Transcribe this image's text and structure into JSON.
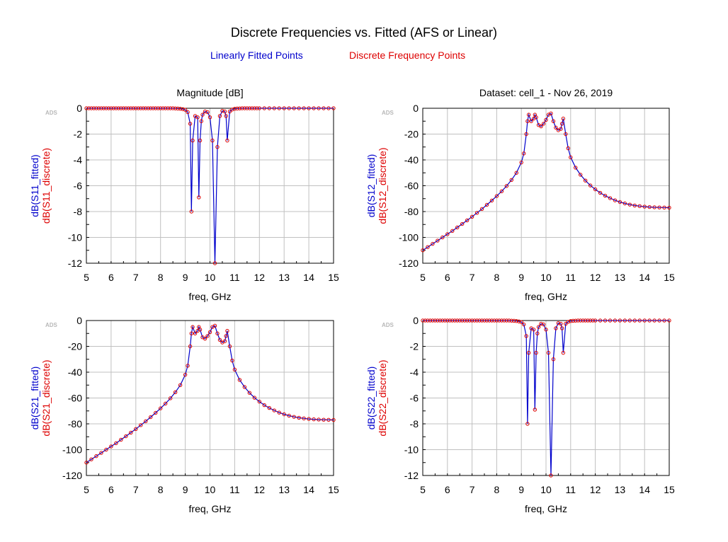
{
  "title": "Discrete Frequencies vs. Fitted (AFS or Linear)",
  "legend": {
    "fitted": "Linearly Fitted Points",
    "discrete": "Discrete Frequency Points"
  },
  "colors": {
    "fitted": "#0000cc",
    "discrete": "#dd0000",
    "grid": "#c0c0c0",
    "axis": "#000000"
  },
  "ads_watermark": "ADS",
  "chart_data": [
    {
      "id": "s11",
      "type": "line",
      "header": "Magnitude [dB]",
      "xlabel": "freq, GHz",
      "ylabel_fitted": "dB(S11_fitted)",
      "ylabel_discrete": "dB(S11_discrete)",
      "xlim": [
        5,
        15
      ],
      "ylim": [
        -12,
        0
      ],
      "xticks": [
        5,
        6,
        7,
        8,
        9,
        10,
        11,
        12,
        13,
        14,
        15
      ],
      "yticks": [
        0,
        -2,
        -4,
        -6,
        -8,
        -10,
        -12
      ],
      "grid": true,
      "points": [
        [
          5,
          0
        ],
        [
          5.1,
          0
        ],
        [
          5.2,
          0
        ],
        [
          5.3,
          0
        ],
        [
          5.4,
          0
        ],
        [
          5.5,
          0
        ],
        [
          5.6,
          0
        ],
        [
          5.7,
          0
        ],
        [
          5.8,
          0
        ],
        [
          5.9,
          0
        ],
        [
          6,
          0
        ],
        [
          6.1,
          0
        ],
        [
          6.2,
          0
        ],
        [
          6.3,
          0
        ],
        [
          6.4,
          0
        ],
        [
          6.5,
          0
        ],
        [
          6.6,
          0
        ],
        [
          6.7,
          0
        ],
        [
          6.8,
          0
        ],
        [
          6.9,
          0
        ],
        [
          7,
          0
        ],
        [
          7.1,
          0
        ],
        [
          7.2,
          0
        ],
        [
          7.3,
          0
        ],
        [
          7.4,
          0
        ],
        [
          7.5,
          0
        ],
        [
          7.6,
          0
        ],
        [
          7.7,
          0
        ],
        [
          7.8,
          0
        ],
        [
          7.9,
          0
        ],
        [
          8,
          0
        ],
        [
          8.1,
          0
        ],
        [
          8.2,
          0
        ],
        [
          8.3,
          0
        ],
        [
          8.4,
          0
        ],
        [
          8.5,
          0
        ],
        [
          8.6,
          -0.01
        ],
        [
          8.7,
          -0.02
        ],
        [
          8.8,
          -0.04
        ],
        [
          8.9,
          -0.07
        ],
        [
          9,
          -0.12
        ],
        [
          9.1,
          -0.3
        ],
        [
          9.2,
          -1.2
        ],
        [
          9.25,
          -8.0
        ],
        [
          9.3,
          -2.5
        ],
        [
          9.4,
          -0.6
        ],
        [
          9.5,
          -0.7
        ],
        [
          9.55,
          -6.9
        ],
        [
          9.6,
          -2.5
        ],
        [
          9.65,
          -1.0
        ],
        [
          9.7,
          -0.5
        ],
        [
          9.8,
          -0.25
        ],
        [
          9.9,
          -0.3
        ],
        [
          10,
          -0.7
        ],
        [
          10.1,
          -2.5
        ],
        [
          10.2,
          -12.0
        ],
        [
          10.3,
          -3.0
        ],
        [
          10.4,
          -0.6
        ],
        [
          10.5,
          -0.2
        ],
        [
          10.6,
          -0.25
        ],
        [
          10.65,
          -0.6
        ],
        [
          10.7,
          -2.5
        ],
        [
          10.8,
          -0.25
        ],
        [
          10.9,
          -0.1
        ],
        [
          11,
          -0.04
        ],
        [
          11.1,
          -0.02
        ],
        [
          11.2,
          -0.01
        ],
        [
          11.3,
          0
        ],
        [
          11.4,
          0
        ],
        [
          11.5,
          0
        ],
        [
          11.6,
          0
        ],
        [
          11.7,
          0
        ],
        [
          11.8,
          0
        ],
        [
          11.9,
          0
        ],
        [
          12,
          0
        ],
        [
          12.2,
          0
        ],
        [
          12.4,
          0
        ],
        [
          12.6,
          0
        ],
        [
          12.8,
          0
        ],
        [
          13,
          0
        ],
        [
          13.2,
          0
        ],
        [
          13.4,
          0
        ],
        [
          13.6,
          0
        ],
        [
          13.8,
          0
        ],
        [
          14,
          0
        ],
        [
          14.2,
          0
        ],
        [
          14.4,
          0
        ],
        [
          14.6,
          0
        ],
        [
          14.8,
          0
        ],
        [
          15,
          0
        ]
      ]
    },
    {
      "id": "s12",
      "type": "line",
      "header": "Dataset: cell_1 - Nov 26, 2019",
      "xlabel": "freq, GHz",
      "ylabel_fitted": "dB(S12_fitted)",
      "ylabel_discrete": "dB(S12_discrete)",
      "xlim": [
        5,
        15
      ],
      "ylim": [
        -120,
        0
      ],
      "xticks": [
        5,
        6,
        7,
        8,
        9,
        10,
        11,
        12,
        13,
        14,
        15
      ],
      "yticks": [
        0,
        -20,
        -40,
        -60,
        -80,
        -100,
        -120
      ],
      "grid": true,
      "points": [
        [
          5,
          -110
        ],
        [
          5.2,
          -107.5
        ],
        [
          5.4,
          -105
        ],
        [
          5.6,
          -102.5
        ],
        [
          5.8,
          -100
        ],
        [
          6,
          -97.5
        ],
        [
          6.2,
          -95
        ],
        [
          6.4,
          -92.3
        ],
        [
          6.6,
          -89.6
        ],
        [
          6.8,
          -86.8
        ],
        [
          7,
          -84
        ],
        [
          7.2,
          -81
        ],
        [
          7.4,
          -78
        ],
        [
          7.6,
          -74.8
        ],
        [
          7.8,
          -71.5
        ],
        [
          8,
          -68
        ],
        [
          8.2,
          -64.3
        ],
        [
          8.4,
          -60.2
        ],
        [
          8.6,
          -55.5
        ],
        [
          8.8,
          -50
        ],
        [
          9,
          -42
        ],
        [
          9.1,
          -35
        ],
        [
          9.2,
          -20
        ],
        [
          9.25,
          -10
        ],
        [
          9.3,
          -5
        ],
        [
          9.4,
          -10
        ],
        [
          9.5,
          -8
        ],
        [
          9.55,
          -5
        ],
        [
          9.6,
          -7
        ],
        [
          9.7,
          -13
        ],
        [
          9.8,
          -14
        ],
        [
          9.9,
          -12
        ],
        [
          10,
          -9
        ],
        [
          10.1,
          -5
        ],
        [
          10.2,
          -4
        ],
        [
          10.3,
          -10
        ],
        [
          10.4,
          -15
        ],
        [
          10.5,
          -17
        ],
        [
          10.6,
          -16
        ],
        [
          10.65,
          -12
        ],
        [
          10.7,
          -8
        ],
        [
          10.8,
          -20
        ],
        [
          10.9,
          -31
        ],
        [
          11,
          -38
        ],
        [
          11.2,
          -46
        ],
        [
          11.4,
          -51.5
        ],
        [
          11.6,
          -56
        ],
        [
          11.8,
          -59.8
        ],
        [
          12,
          -62.8
        ],
        [
          12.2,
          -65.5
        ],
        [
          12.4,
          -67.7
        ],
        [
          12.6,
          -69.6
        ],
        [
          12.8,
          -71.3
        ],
        [
          13,
          -72.6
        ],
        [
          13.2,
          -73.7
        ],
        [
          13.4,
          -74.6
        ],
        [
          13.6,
          -75.3
        ],
        [
          13.8,
          -75.8
        ],
        [
          14,
          -76.2
        ],
        [
          14.2,
          -76.5
        ],
        [
          14.4,
          -76.7
        ],
        [
          14.6,
          -76.8
        ],
        [
          14.8,
          -76.9
        ],
        [
          15,
          -77
        ]
      ]
    },
    {
      "id": "s21",
      "type": "line",
      "header": "",
      "xlabel": "freq, GHz",
      "ylabel_fitted": "dB(S21_fitted)",
      "ylabel_discrete": "dB(S21_discrete)",
      "xlim": [
        5,
        15
      ],
      "ylim": [
        -120,
        0
      ],
      "xticks": [
        5,
        6,
        7,
        8,
        9,
        10,
        11,
        12,
        13,
        14,
        15
      ],
      "yticks": [
        0,
        -20,
        -40,
        -60,
        -80,
        -100,
        -120
      ],
      "grid": true,
      "points": [
        [
          5,
          -110
        ],
        [
          5.2,
          -107.5
        ],
        [
          5.4,
          -105
        ],
        [
          5.6,
          -102.5
        ],
        [
          5.8,
          -100
        ],
        [
          6,
          -97.5
        ],
        [
          6.2,
          -95
        ],
        [
          6.4,
          -92.3
        ],
        [
          6.6,
          -89.6
        ],
        [
          6.8,
          -86.8
        ],
        [
          7,
          -84
        ],
        [
          7.2,
          -81
        ],
        [
          7.4,
          -78
        ],
        [
          7.6,
          -74.8
        ],
        [
          7.8,
          -71.5
        ],
        [
          8,
          -68
        ],
        [
          8.2,
          -64.3
        ],
        [
          8.4,
          -60.2
        ],
        [
          8.6,
          -55.5
        ],
        [
          8.8,
          -50
        ],
        [
          9,
          -42
        ],
        [
          9.1,
          -35
        ],
        [
          9.2,
          -20
        ],
        [
          9.25,
          -10
        ],
        [
          9.3,
          -5
        ],
        [
          9.4,
          -10
        ],
        [
          9.5,
          -8
        ],
        [
          9.55,
          -5
        ],
        [
          9.6,
          -7
        ],
        [
          9.7,
          -13
        ],
        [
          9.8,
          -14
        ],
        [
          9.9,
          -12
        ],
        [
          10,
          -9
        ],
        [
          10.1,
          -5
        ],
        [
          10.2,
          -4
        ],
        [
          10.3,
          -10
        ],
        [
          10.4,
          -15
        ],
        [
          10.5,
          -17
        ],
        [
          10.6,
          -16
        ],
        [
          10.65,
          -12
        ],
        [
          10.7,
          -8
        ],
        [
          10.8,
          -20
        ],
        [
          10.9,
          -31
        ],
        [
          11,
          -38
        ],
        [
          11.2,
          -46
        ],
        [
          11.4,
          -51.5
        ],
        [
          11.6,
          -56
        ],
        [
          11.8,
          -59.8
        ],
        [
          12,
          -62.8
        ],
        [
          12.2,
          -65.5
        ],
        [
          12.4,
          -67.7
        ],
        [
          12.6,
          -69.6
        ],
        [
          12.8,
          -71.3
        ],
        [
          13,
          -72.6
        ],
        [
          13.2,
          -73.7
        ],
        [
          13.4,
          -74.6
        ],
        [
          13.6,
          -75.3
        ],
        [
          13.8,
          -75.8
        ],
        [
          14,
          -76.2
        ],
        [
          14.2,
          -76.5
        ],
        [
          14.4,
          -76.7
        ],
        [
          14.6,
          -76.8
        ],
        [
          14.8,
          -76.9
        ],
        [
          15,
          -77
        ]
      ]
    },
    {
      "id": "s22",
      "type": "line",
      "header": "",
      "xlabel": "freq, GHz",
      "ylabel_fitted": "dB(S22_fitted)",
      "ylabel_discrete": "dB(S22_discrete)",
      "xlim": [
        5,
        15
      ],
      "ylim": [
        -12,
        0
      ],
      "xticks": [
        5,
        6,
        7,
        8,
        9,
        10,
        11,
        12,
        13,
        14,
        15
      ],
      "yticks": [
        0,
        -2,
        -4,
        -6,
        -8,
        -10,
        -12
      ],
      "grid": true,
      "points": [
        [
          5,
          0
        ],
        [
          5.1,
          0
        ],
        [
          5.2,
          0
        ],
        [
          5.3,
          0
        ],
        [
          5.4,
          0
        ],
        [
          5.5,
          0
        ],
        [
          5.6,
          0
        ],
        [
          5.7,
          0
        ],
        [
          5.8,
          0
        ],
        [
          5.9,
          0
        ],
        [
          6,
          0
        ],
        [
          6.1,
          0
        ],
        [
          6.2,
          0
        ],
        [
          6.3,
          0
        ],
        [
          6.4,
          0
        ],
        [
          6.5,
          0
        ],
        [
          6.6,
          0
        ],
        [
          6.7,
          0
        ],
        [
          6.8,
          0
        ],
        [
          6.9,
          0
        ],
        [
          7,
          0
        ],
        [
          7.1,
          0
        ],
        [
          7.2,
          0
        ],
        [
          7.3,
          0
        ],
        [
          7.4,
          0
        ],
        [
          7.5,
          0
        ],
        [
          7.6,
          0
        ],
        [
          7.7,
          0
        ],
        [
          7.8,
          0
        ],
        [
          7.9,
          0
        ],
        [
          8,
          0
        ],
        [
          8.1,
          0
        ],
        [
          8.2,
          0
        ],
        [
          8.3,
          0
        ],
        [
          8.4,
          0
        ],
        [
          8.5,
          0
        ],
        [
          8.6,
          -0.01
        ],
        [
          8.7,
          -0.02
        ],
        [
          8.8,
          -0.04
        ],
        [
          8.9,
          -0.07
        ],
        [
          9,
          -0.12
        ],
        [
          9.1,
          -0.3
        ],
        [
          9.2,
          -1.2
        ],
        [
          9.25,
          -8.0
        ],
        [
          9.3,
          -2.5
        ],
        [
          9.4,
          -0.6
        ],
        [
          9.5,
          -0.7
        ],
        [
          9.55,
          -6.9
        ],
        [
          9.6,
          -2.5
        ],
        [
          9.65,
          -1.0
        ],
        [
          9.7,
          -0.5
        ],
        [
          9.8,
          -0.25
        ],
        [
          9.9,
          -0.3
        ],
        [
          10,
          -0.7
        ],
        [
          10.1,
          -2.5
        ],
        [
          10.2,
          -12.0
        ],
        [
          10.3,
          -3.0
        ],
        [
          10.4,
          -0.6
        ],
        [
          10.5,
          -0.2
        ],
        [
          10.6,
          -0.25
        ],
        [
          10.65,
          -0.6
        ],
        [
          10.7,
          -2.5
        ],
        [
          10.8,
          -0.25
        ],
        [
          10.9,
          -0.1
        ],
        [
          11,
          -0.04
        ],
        [
          11.1,
          -0.02
        ],
        [
          11.2,
          -0.01
        ],
        [
          11.3,
          0
        ],
        [
          11.4,
          0
        ],
        [
          11.5,
          0
        ],
        [
          11.6,
          0
        ],
        [
          11.7,
          0
        ],
        [
          11.8,
          0
        ],
        [
          11.9,
          0
        ],
        [
          12,
          0
        ],
        [
          12.2,
          0
        ],
        [
          12.4,
          0
        ],
        [
          12.6,
          0
        ],
        [
          12.8,
          0
        ],
        [
          13,
          0
        ],
        [
          13.2,
          0
        ],
        [
          13.4,
          0
        ],
        [
          13.6,
          0
        ],
        [
          13.8,
          0
        ],
        [
          14,
          0
        ],
        [
          14.2,
          0
        ],
        [
          14.4,
          0
        ],
        [
          14.6,
          0
        ],
        [
          14.8,
          0
        ],
        [
          15,
          0
        ]
      ]
    }
  ]
}
